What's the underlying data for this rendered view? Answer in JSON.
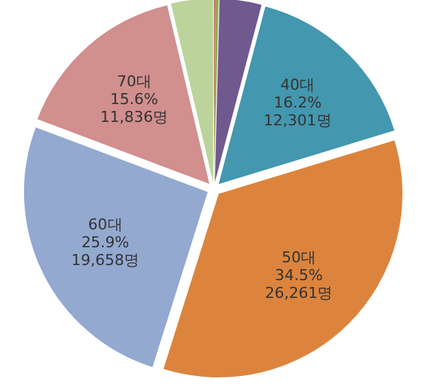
{
  "chart_data": {
    "type": "pie",
    "categories": [
      null,
      null,
      null,
      "40대",
      "50대",
      "60대",
      "70대",
      null
    ],
    "values": [
      80,
      230,
      2800,
      12301,
      26261,
      19658,
      11836,
      2800
    ],
    "colors": [
      "#c0504d",
      "#8fae4f",
      "#70598f",
      "#4397ae",
      "#dc843d",
      "#93a9d0",
      "#d18f8e",
      "#bcd39b"
    ],
    "value_labels": [
      null,
      null,
      null,
      "16.2%\n12,301명",
      "34.5%\n26,261명",
      "25.9%\n19,658명",
      "15.6%\n11,836명",
      null
    ]
  }
}
